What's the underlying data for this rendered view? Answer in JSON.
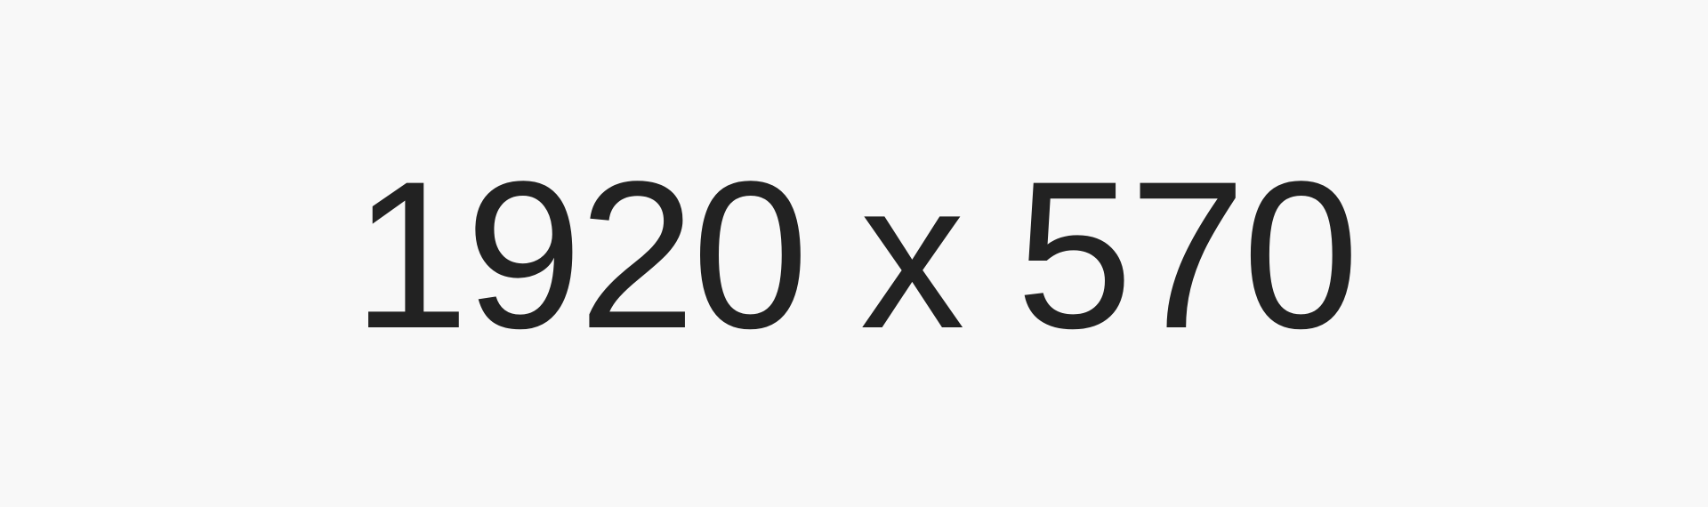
{
  "placeholder": {
    "text": "1920 x 570",
    "background_color": "#f8f8f8",
    "text_color": "#222222"
  }
}
